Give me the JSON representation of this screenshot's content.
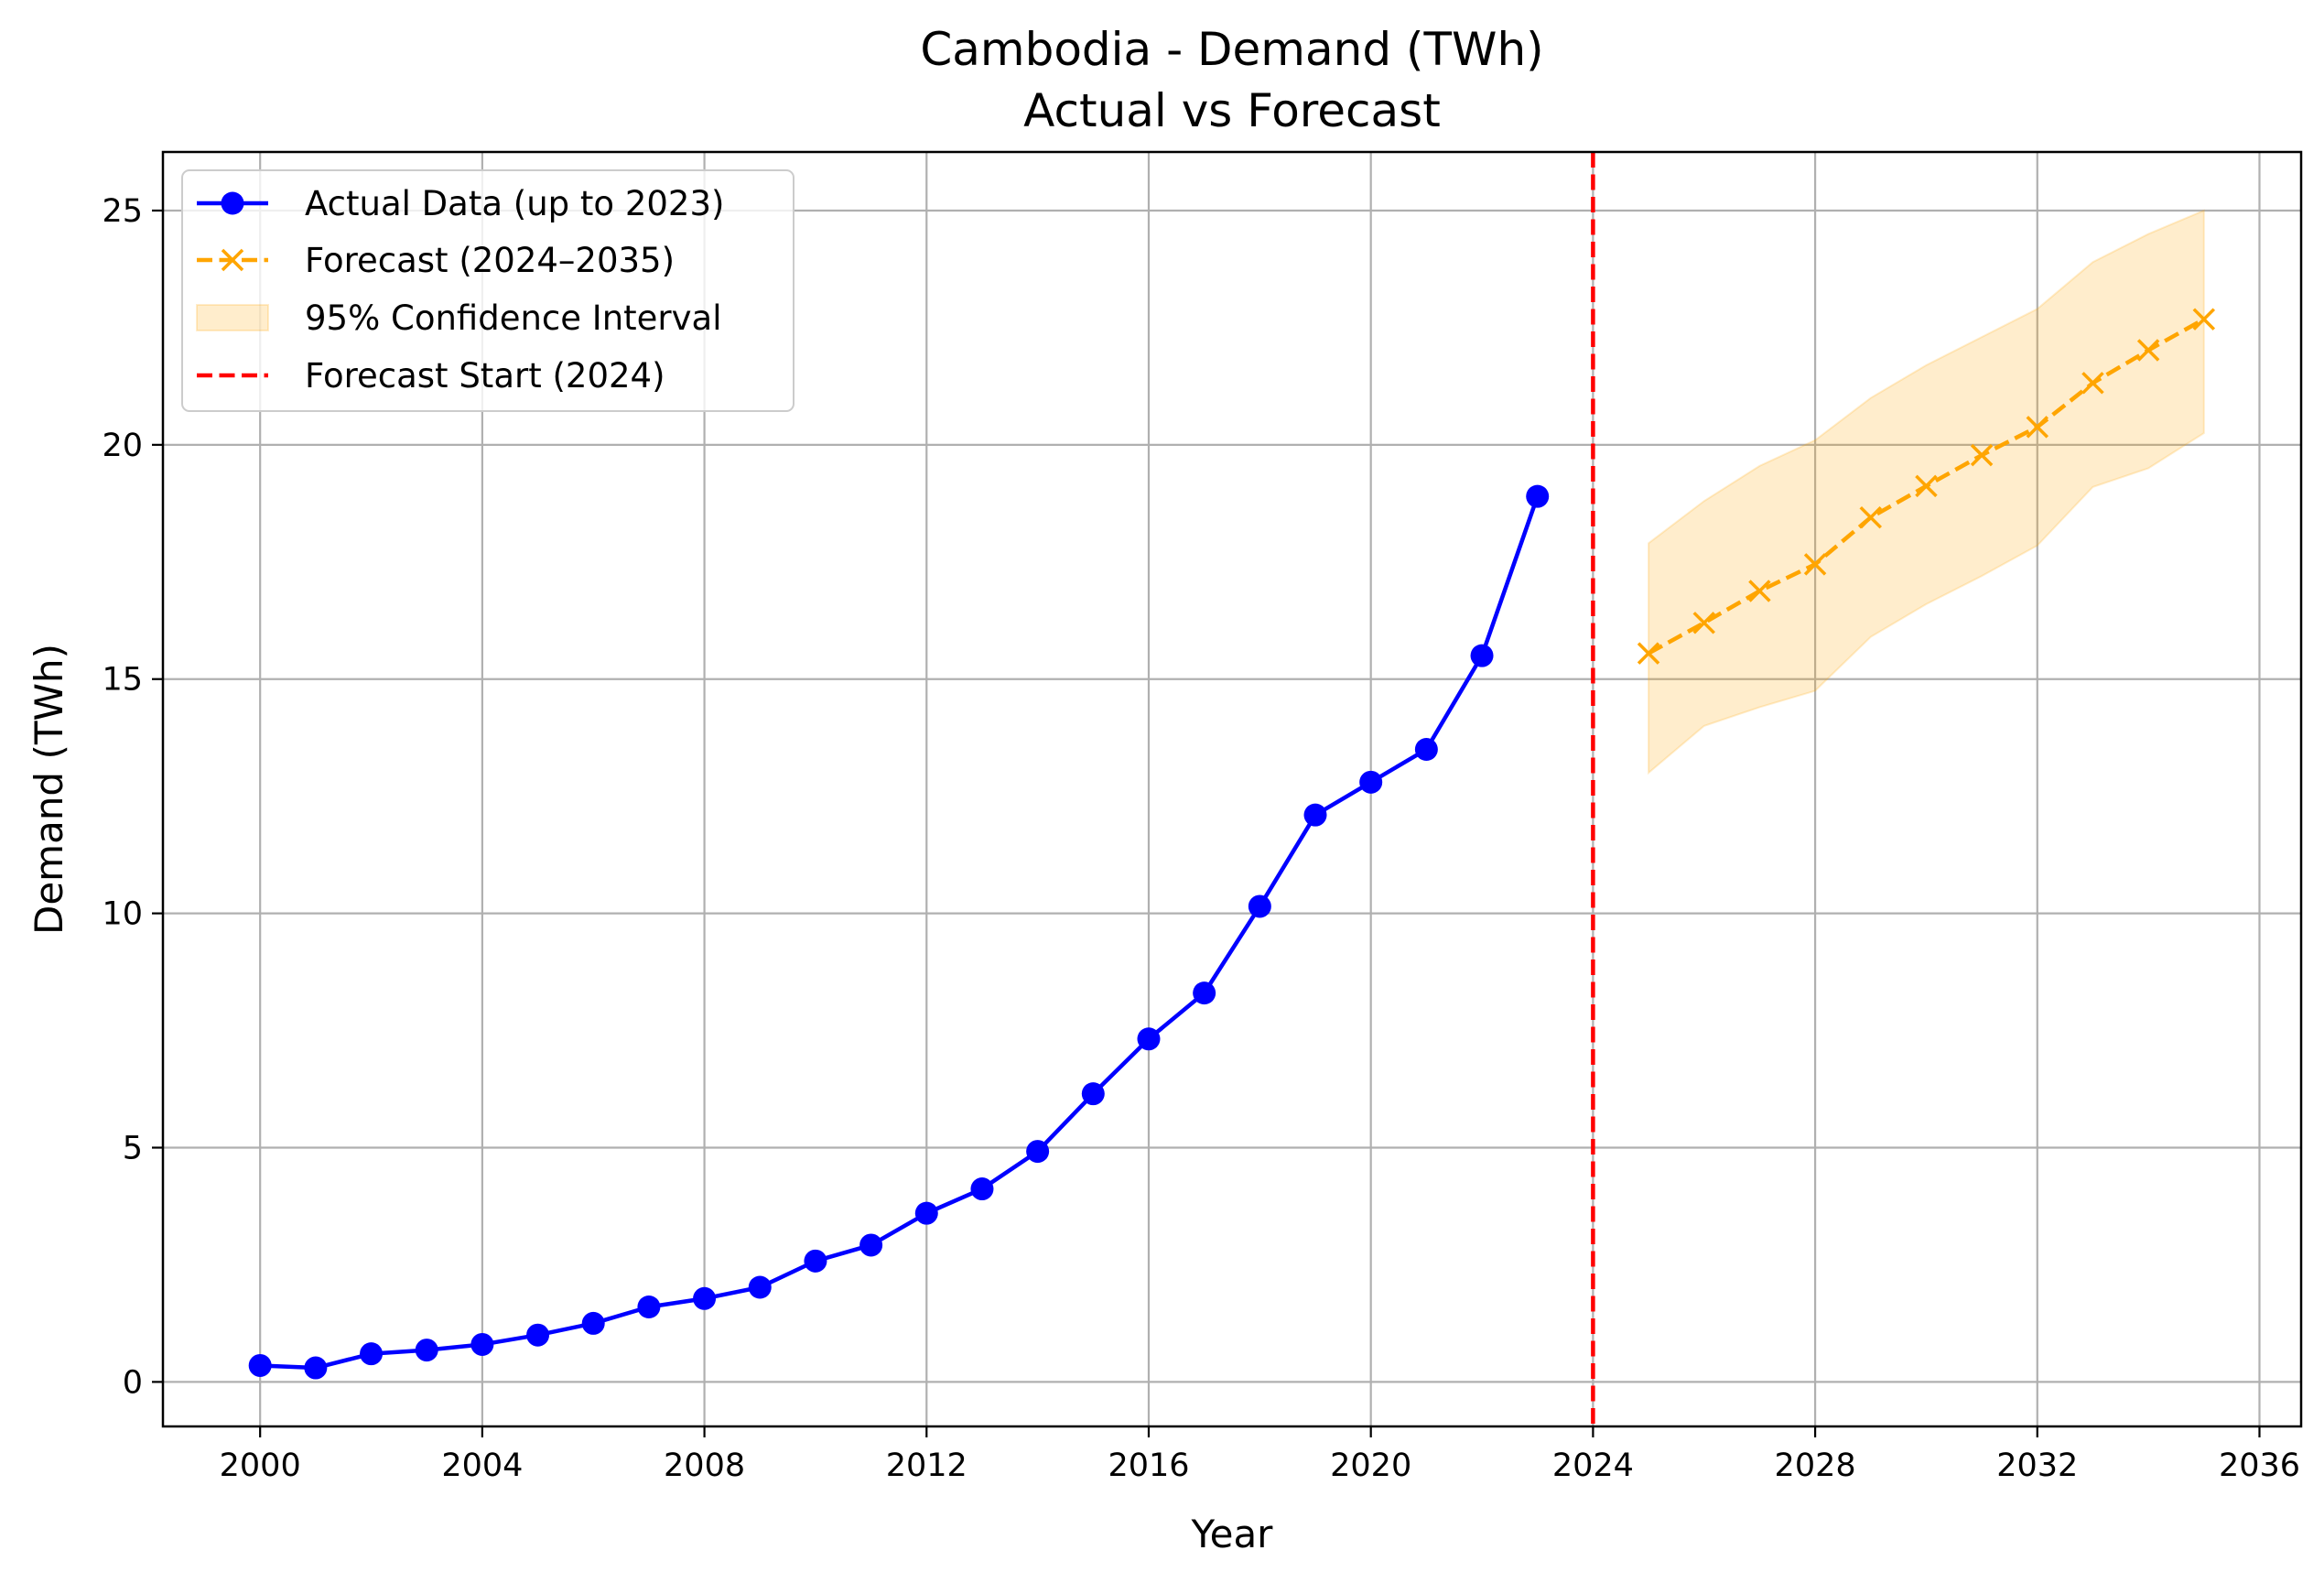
{
  "chart_data": {
    "type": "line",
    "title": "Cambodia - Demand (TWh)",
    "subtitle": "Actual vs Forecast",
    "xlabel": "Year",
    "ylabel": "Demand (TWh)",
    "xlim": [
      1998.25,
      2036.75
    ],
    "ylim": [
      -0.95,
      26.25
    ],
    "xticks": [
      2000,
      2004,
      2008,
      2012,
      2016,
      2020,
      2024,
      2028,
      2032,
      2036
    ],
    "yticks": [
      0,
      5,
      10,
      15,
      20,
      25
    ],
    "grid": true,
    "legend_position": "upper left",
    "colors": {
      "actual": "#0000ff",
      "forecast": "#ffa500",
      "ci": "#ffa500",
      "forecast_start": "#ff0000"
    },
    "series": [
      {
        "name": "Actual Data (up to 2023)",
        "style": "solid line with circle markers",
        "x": [
          2000,
          2001,
          2002,
          2003,
          2004,
          2005,
          2006,
          2007,
          2008,
          2009,
          2010,
          2011,
          2012,
          2013,
          2014,
          2015,
          2016,
          2017,
          2018,
          2019,
          2020,
          2021,
          2022,
          2023
        ],
        "y": [
          0.35,
          0.3,
          0.6,
          0.68,
          0.8,
          1.0,
          1.25,
          1.6,
          1.78,
          2.02,
          2.58,
          2.92,
          3.6,
          4.12,
          4.92,
          6.15,
          7.32,
          8.3,
          10.15,
          12.1,
          12.8,
          13.5,
          15.5,
          18.9
        ]
      },
      {
        "name": "Forecast (2024–2035)",
        "style": "dashed line with x markers",
        "x": [
          2025,
          2026,
          2027,
          2028,
          2029,
          2030,
          2031,
          2032,
          2033,
          2034,
          2035
        ],
        "y": [
          15.55,
          16.2,
          16.88,
          17.45,
          18.45,
          19.12,
          19.78,
          20.38,
          21.32,
          22.02,
          22.68
        ]
      },
      {
        "name": "95% Confidence Interval",
        "style": "shaded band",
        "x": [
          2025,
          2026,
          2027,
          2028,
          2029,
          2030,
          2031,
          2032,
          2033,
          2034,
          2035
        ],
        "lower": [
          13.0,
          14.0,
          14.4,
          14.75,
          15.9,
          16.6,
          17.2,
          17.85,
          19.1,
          19.5,
          20.25
        ],
        "upper": [
          17.9,
          18.8,
          19.55,
          20.1,
          21.0,
          21.7,
          22.3,
          22.9,
          23.9,
          24.5,
          25.0
        ]
      },
      {
        "name": "Forecast Start (2024)",
        "style": "vertical dashed line",
        "x": 2024
      }
    ]
  }
}
